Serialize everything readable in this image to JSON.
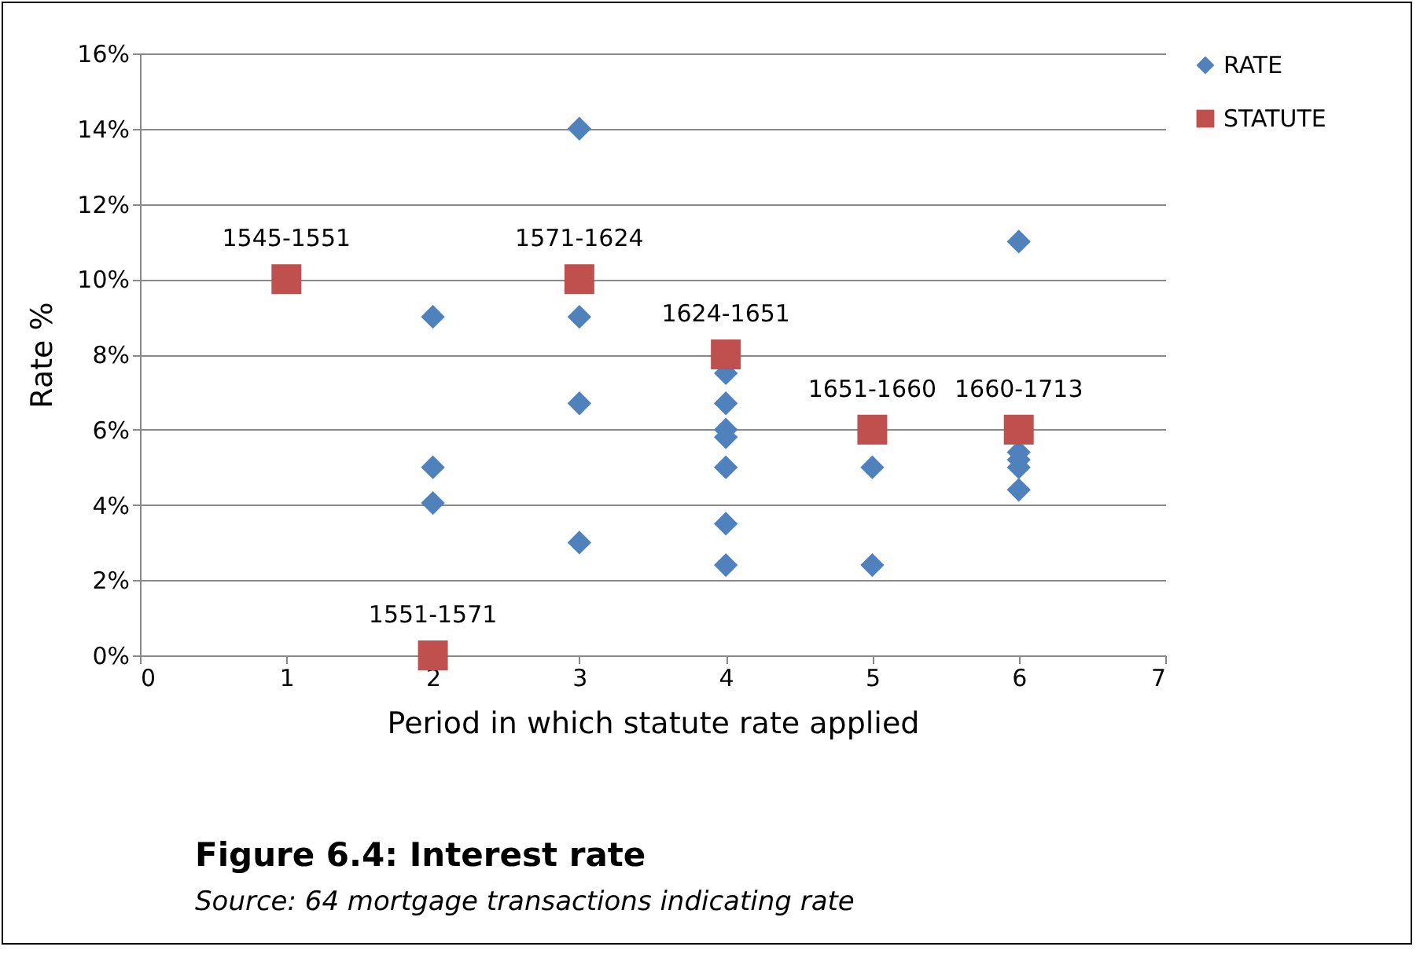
{
  "chart_data": {
    "type": "scatter",
    "title": "Figure 6.4: Interest rate",
    "xlabel": "Period in which statute rate applied",
    "ylabel": "Rate %",
    "xlim": [
      0,
      7
    ],
    "xticks": [
      0,
      1,
      2,
      3,
      4,
      5,
      6,
      7
    ],
    "ylim": [
      0,
      16
    ],
    "yticks": [
      {
        "value": 0,
        "label": "0%"
      },
      {
        "value": 2,
        "label": "2%"
      },
      {
        "value": 4,
        "label": "4%"
      },
      {
        "value": 6,
        "label": "6%"
      },
      {
        "value": 8,
        "label": "8%"
      },
      {
        "value": 10,
        "label": "10%"
      },
      {
        "value": 12,
        "label": "12%"
      },
      {
        "value": 14,
        "label": "14%"
      },
      {
        "value": 16,
        "label": "16%"
      }
    ],
    "grid": "y",
    "legend": "right",
    "series": [
      {
        "name": "RATE",
        "color": "#4f81bd",
        "marker": "diamond",
        "x": [
          2,
          2,
          2,
          3,
          3,
          3,
          3,
          4,
          4,
          4,
          4,
          4,
          4,
          4,
          5,
          5,
          6,
          6,
          6,
          6,
          6
        ],
        "values": [
          9,
          5,
          4.05,
          14,
          9,
          6.7,
          3,
          7.5,
          6.7,
          6,
          5.8,
          5,
          3.5,
          2.4,
          5,
          2.4,
          11,
          5.4,
          5.2,
          5,
          4.4
        ]
      },
      {
        "name": "STATUTE",
        "color": "#c0504d",
        "marker": "square",
        "x": [
          1,
          2,
          3,
          4,
          5,
          6
        ],
        "values": [
          10,
          0,
          10,
          8,
          6,
          6
        ]
      }
    ],
    "annotations": [
      {
        "text": "1545-1551",
        "x": 1,
        "y": 10
      },
      {
        "text": "1551-1571",
        "x": 2,
        "y": 0
      },
      {
        "text": "1571-1624",
        "x": 3,
        "y": 10
      },
      {
        "text": "1624-1651",
        "x": 4,
        "y": 8
      },
      {
        "text": "1651-1660",
        "x": 5,
        "y": 6
      },
      {
        "text": "1660-1713",
        "x": 6,
        "y": 6
      },
      "Source: 64 mortgage transactions indicating rate"
    ]
  }
}
